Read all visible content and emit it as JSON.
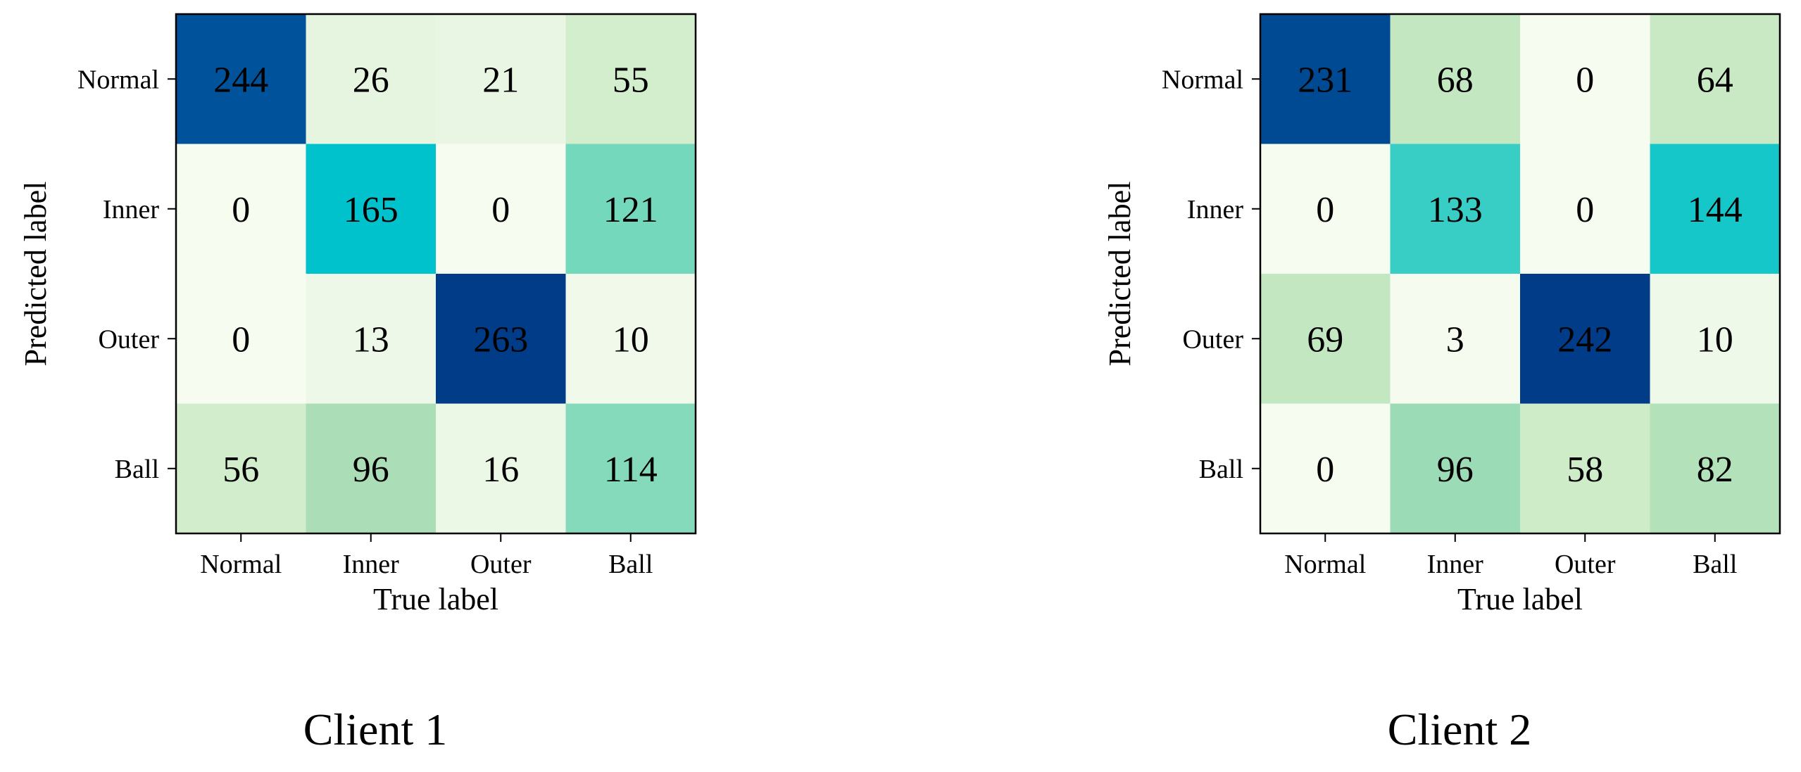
{
  "chart_data": [
    {
      "type": "heatmap",
      "xlabel": "True label",
      "ylabel": "Predicted label",
      "x_categories": [
        "Normal",
        "Inner",
        "Outer",
        "Ball"
      ],
      "y_categories": [
        "Normal",
        "Inner",
        "Outer",
        "Ball"
      ],
      "values": [
        [
          244,
          26,
          21,
          55
        ],
        [
          0,
          165,
          0,
          121
        ],
        [
          0,
          13,
          263,
          10
        ],
        [
          56,
          96,
          16,
          114
        ]
      ],
      "colormap": "GnBu",
      "grid": false,
      "caption": "Client 1"
    },
    {
      "type": "heatmap",
      "xlabel": "True label",
      "ylabel": "Predicted label",
      "x_categories": [
        "Normal",
        "Inner",
        "Outer",
        "Ball"
      ],
      "y_categories": [
        "Normal",
        "Inner",
        "Outer",
        "Ball"
      ],
      "values": [
        [
          231,
          68,
          0,
          64
        ],
        [
          0,
          133,
          0,
          144
        ],
        [
          69,
          3,
          242,
          10
        ],
        [
          0,
          96,
          58,
          82
        ]
      ],
      "colormap": "GnBu",
      "grid": false,
      "caption": "Client 2"
    }
  ],
  "colors": {
    "colormap_stops": [
      "#f7fcf0",
      "#e0f3db",
      "#ccebc5",
      "#a8ddb5",
      "#5cd6c0",
      "#00c2cc",
      "#00a8d6",
      "#0062a8",
      "#003c88"
    ],
    "frame": "#000000",
    "text": "#000000"
  }
}
